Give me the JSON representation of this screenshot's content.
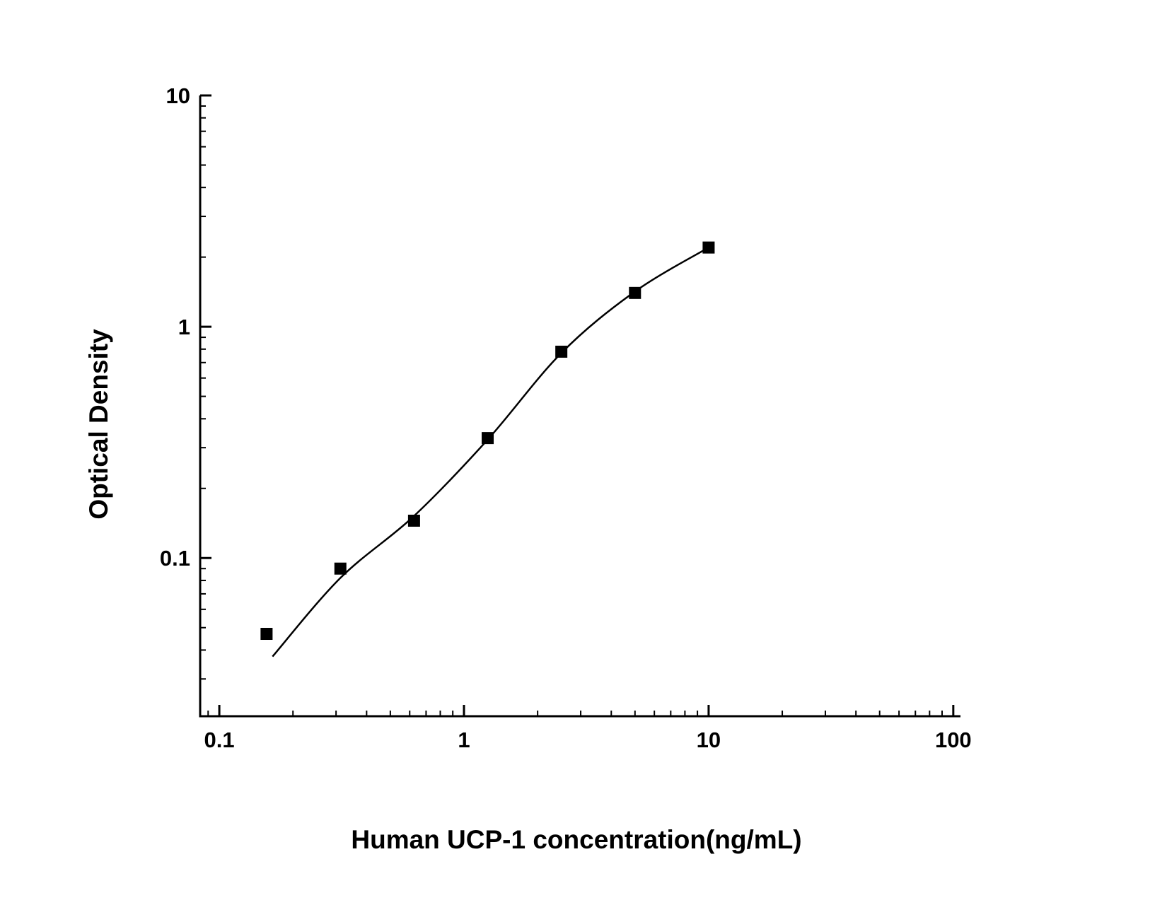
{
  "chart_data": {
    "type": "scatter",
    "title": "",
    "xlabel": "Human UCP-1 concentration(ng/mL)",
    "ylabel": "Optical Density",
    "xscale": "log",
    "yscale": "log",
    "xlim": [
      0.0835,
      107
    ],
    "ylim": [
      0.0207,
      10
    ],
    "grid": false,
    "legend": "none",
    "x_major_ticks": [
      {
        "value": 0.1,
        "label": "0.1"
      },
      {
        "value": 1,
        "label": "1"
      },
      {
        "value": 10,
        "label": "10"
      },
      {
        "value": 100,
        "label": "100"
      }
    ],
    "y_major_ticks": [
      {
        "value": 0.1,
        "label": "0.1"
      },
      {
        "value": 1,
        "label": "1"
      },
      {
        "value": 10,
        "label": "10"
      }
    ],
    "series": [
      {
        "name": "standard-points",
        "marker": "square",
        "marker_size": 17,
        "color": "#000000",
        "points": [
          [
            0.156,
            0.047
          ],
          [
            0.3125,
            0.09
          ],
          [
            0.625,
            0.145
          ],
          [
            1.25,
            0.33
          ],
          [
            2.5,
            0.78
          ],
          [
            5,
            1.4
          ],
          [
            10,
            2.2
          ]
        ]
      }
    ],
    "fit_curve": {
      "name": "4pl-fit-line",
      "color": "#000000",
      "width": 2.5,
      "points": [
        [
          0.165,
          0.0375
        ],
        [
          0.3125,
          0.082
        ],
        [
          0.625,
          0.152
        ],
        [
          1.25,
          0.325
        ],
        [
          2.5,
          0.77
        ],
        [
          5,
          1.42
        ],
        [
          10,
          2.2
        ]
      ]
    },
    "axis_color": "#000000"
  }
}
